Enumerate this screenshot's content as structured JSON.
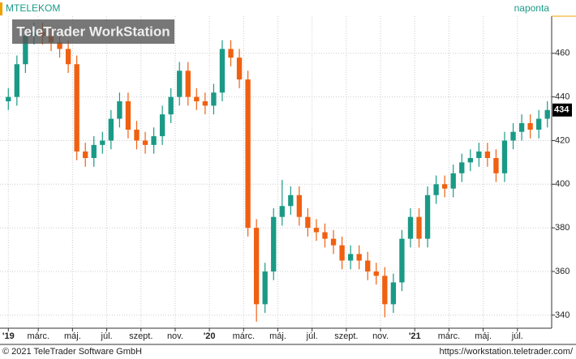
{
  "chart_data": {
    "type": "candlestick",
    "title": "MTELEKOM",
    "interval": "naponta",
    "watermark": "TeleTrader WorkStation",
    "copyright": "© 2021 TeleTrader Software GmbH",
    "url": "https://workstation.teletrader.com/",
    "up_color": "#1a9a86",
    "down_color": "#f06010",
    "open": [
      438,
      440,
      455,
      468,
      470,
      468,
      465,
      462,
      455,
      415,
      412,
      418,
      420,
      430,
      438,
      425,
      420,
      418,
      422,
      432,
      440,
      452,
      440,
      438,
      436,
      442,
      462,
      458,
      448,
      380,
      345,
      360,
      385,
      390,
      395,
      385,
      380,
      378,
      375,
      372,
      365,
      368,
      365,
      360,
      358,
      345,
      355,
      375,
      385,
      375,
      395,
      400,
      398,
      405,
      410,
      412,
      415,
      412,
      405,
      420,
      424,
      428,
      425,
      430
    ],
    "high": [
      444,
      459,
      472,
      474,
      474,
      472,
      469,
      466,
      459,
      419,
      422,
      424,
      434,
      442,
      442,
      429,
      424,
      426,
      436,
      444,
      456,
      456,
      444,
      442,
      446,
      466,
      466,
      462,
      452,
      384,
      364,
      389,
      402,
      399,
      399,
      389,
      384,
      382,
      379,
      376,
      372,
      372,
      369,
      364,
      362,
      359,
      379,
      389,
      389,
      399,
      404,
      404,
      409,
      414,
      416,
      419,
      419,
      416,
      424,
      428,
      432,
      432,
      434,
      438
    ],
    "low": [
      434,
      436,
      451,
      464,
      464,
      461,
      458,
      451,
      411,
      408,
      408,
      414,
      416,
      426,
      421,
      416,
      414,
      414,
      418,
      428,
      436,
      436,
      434,
      432,
      432,
      438,
      454,
      444,
      376,
      337,
      341,
      356,
      381,
      386,
      381,
      376,
      374,
      371,
      368,
      361,
      361,
      361,
      356,
      354,
      339,
      341,
      351,
      371,
      371,
      371,
      391,
      394,
      394,
      401,
      406,
      408,
      408,
      401,
      401,
      416,
      420,
      421,
      421,
      426
    ],
    "close": [
      440,
      455,
      468,
      470,
      468,
      465,
      462,
      455,
      415,
      412,
      418,
      420,
      430,
      438,
      425,
      420,
      418,
      422,
      432,
      440,
      452,
      440,
      438,
      436,
      442,
      462,
      458,
      448,
      380,
      345,
      360,
      385,
      390,
      395,
      385,
      380,
      378,
      375,
      372,
      365,
      368,
      365,
      360,
      358,
      345,
      355,
      375,
      385,
      375,
      395,
      400,
      398,
      405,
      410,
      412,
      415,
      412,
      405,
      420,
      424,
      428,
      425,
      430,
      434
    ],
    "xlim": [
      0,
      64
    ],
    "xticks": [
      {
        "value": 0.5,
        "label": "'19"
      },
      {
        "value": 4,
        "label": "márc."
      },
      {
        "value": 8,
        "label": "máj."
      },
      {
        "value": 12,
        "label": "júl."
      },
      {
        "value": 16,
        "label": "szept."
      },
      {
        "value": 20,
        "label": "nov."
      },
      {
        "value": 24,
        "label": "'20"
      },
      {
        "value": 28,
        "label": "márc."
      },
      {
        "value": 32,
        "label": "máj."
      },
      {
        "value": 36,
        "label": "júl."
      },
      {
        "value": 40,
        "label": "szept."
      },
      {
        "value": 44,
        "label": "nov."
      },
      {
        "value": 48,
        "label": "'21"
      },
      {
        "value": 52,
        "label": "márc."
      },
      {
        "value": 56,
        "label": "máj."
      },
      {
        "value": 60,
        "label": "júl."
      }
    ],
    "ylim": [
      334,
      477
    ],
    "yticks": [
      340,
      360,
      380,
      400,
      420,
      440,
      460
    ],
    "grid": true
  }
}
